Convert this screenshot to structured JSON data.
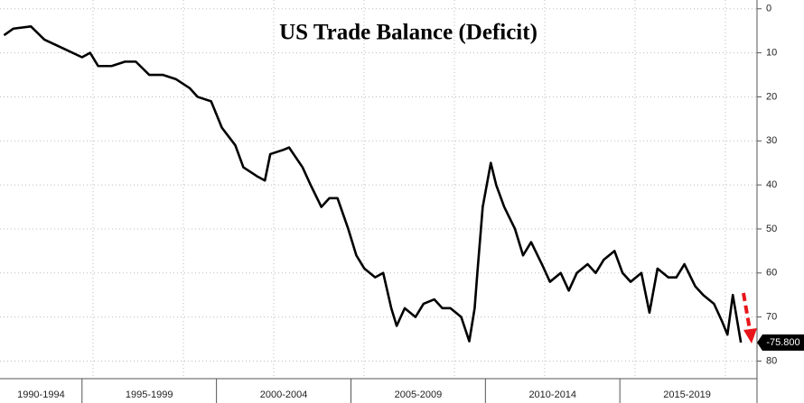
{
  "chart_data": {
    "type": "line",
    "title": "US Trade Balance (Deficit)",
    "x": [
      1992.1,
      1992.45,
      1993.1,
      1993.6,
      1994.3,
      1995.0,
      1995.3,
      1995.6,
      1996.1,
      1996.6,
      1997.0,
      1997.5,
      1998.0,
      1998.5,
      1999.0,
      1999.3,
      1999.8,
      2000.2,
      2000.7,
      2001.0,
      2001.5,
      2001.8,
      2002.0,
      2002.5,
      2002.7,
      2003.2,
      2003.5,
      2003.9,
      2004.2,
      2004.5,
      2004.9,
      2005.2,
      2005.5,
      2005.9,
      2006.2,
      2006.5,
      2006.7,
      2007.0,
      2007.4,
      2007.7,
      2008.1,
      2008.4,
      2008.7,
      2009.1,
      2009.4,
      2009.6,
      2009.7,
      2009.9,
      2010.2,
      2010.4,
      2010.7,
      2011.1,
      2011.4,
      2011.7,
      2012.1,
      2012.4,
      2012.8,
      2013.1,
      2013.4,
      2013.8,
      2014.1,
      2014.4,
      2014.8,
      2015.1,
      2015.4,
      2015.8,
      2016.1,
      2016.4,
      2016.8,
      2017.1,
      2017.4,
      2017.8,
      2018.1,
      2018.5,
      2018.8,
      2019.0,
      2019.2,
      2019.5
    ],
    "series": [
      {
        "name": "US Trade Balance",
        "color": "#000000",
        "values": [
          -6,
          -4.5,
          -4,
          -7,
          -9,
          -11,
          -10,
          -13,
          -13,
          -12,
          -12,
          -15,
          -15,
          -16,
          -18,
          -20,
          -21,
          -27,
          -31,
          -36,
          -38,
          -39,
          -33,
          -32,
          -31.5,
          -36,
          -40,
          -45,
          -43,
          -43,
          -50,
          -56,
          -59,
          -61,
          -60,
          -68,
          -72,
          -68,
          -70,
          -67,
          -66,
          -68,
          -68,
          -70,
          -75.5,
          -68,
          -60,
          -45,
          -35,
          -40,
          -45,
          -50,
          -56,
          -53,
          -58,
          -62,
          -60,
          -64,
          -60,
          -58,
          -60,
          -57,
          -55,
          -60,
          -62,
          -60,
          -69,
          -59,
          -61,
          -61,
          -58,
          -63,
          -65,
          -67,
          -71,
          -74,
          -65,
          -75.8
        ]
      }
    ],
    "annotation": "-75.800",
    "xlim": [
      1991.95,
      2020.1
    ],
    "xticks": [
      {
        "value": 1992.5,
        "label": "1990-1994"
      },
      {
        "value": 1997.5,
        "label": "1995-1999"
      },
      {
        "value": 2002.5,
        "label": "2000-2004"
      },
      {
        "value": 2007.5,
        "label": "2005-2009"
      },
      {
        "value": 2012.5,
        "label": "2010-2014"
      },
      {
        "value": 2017.5,
        "label": "2015-2019"
      }
    ],
    "ylim": [
      -84,
      2
    ],
    "yticks": [
      0,
      {
        "value": -10,
        "label": "10"
      },
      {
        "value": -20,
        "label": "20"
      },
      {
        "value": -30,
        "label": "30"
      },
      {
        "value": -40,
        "label": "40"
      },
      {
        "value": -50,
        "label": "50"
      },
      {
        "value": -60,
        "label": "60"
      },
      {
        "value": -70,
        "label": "70"
      },
      {
        "value": -80,
        "label": "80"
      }
    ],
    "grid": true
  }
}
